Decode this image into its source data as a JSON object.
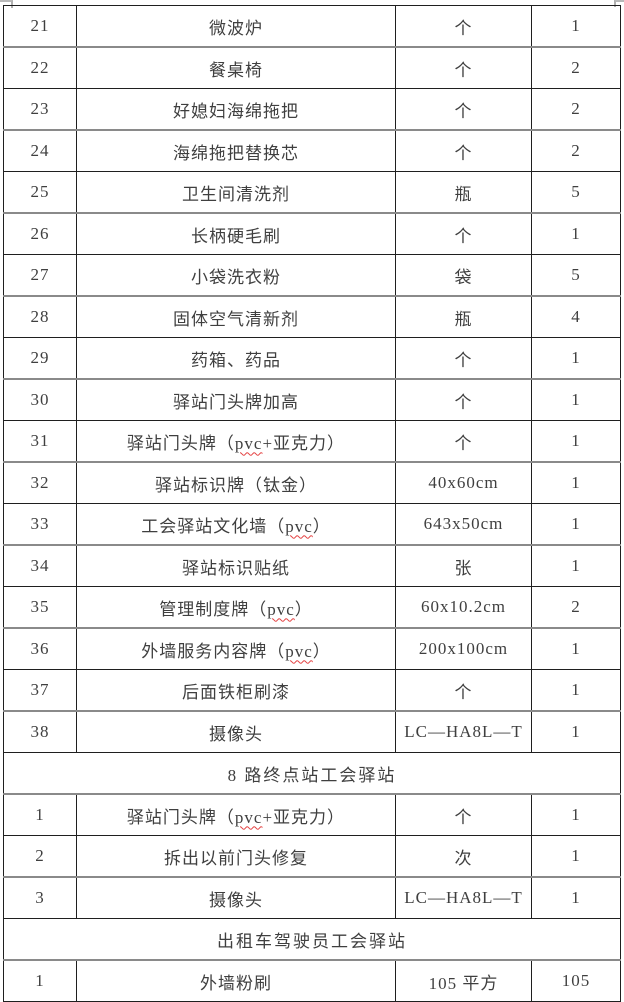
{
  "colors": {
    "text": "#3f3f3f",
    "border_dark": "#1f1f1f",
    "border_gray": "#8a8a8a",
    "spellcheck_squiggle": "#e34040",
    "background": "#ffffff"
  },
  "table": {
    "sections": [
      {
        "header": null,
        "rows": [
          {
            "no": "21",
            "item": "微波炉",
            "spec": "个",
            "qty": "1"
          },
          {
            "no": "22",
            "item": "餐桌椅",
            "spec": "个",
            "qty": "2"
          },
          {
            "no": "23",
            "item": "好媳妇海绵拖把",
            "spec": "个",
            "qty": "2"
          },
          {
            "no": "24",
            "item": "海绵拖把替换芯",
            "spec": "个",
            "qty": "2"
          },
          {
            "no": "25",
            "item": "卫生间清洗剂",
            "spec": "瓶",
            "qty": "5"
          },
          {
            "no": "26",
            "item": "长柄硬毛刷",
            "spec": "个",
            "qty": "1"
          },
          {
            "no": "27",
            "item": "小袋洗衣粉",
            "spec": "袋",
            "qty": "5"
          },
          {
            "no": "28",
            "item": "固体空气清新剂",
            "spec": "瓶",
            "qty": "4"
          },
          {
            "no": "29",
            "item": "药箱、药品",
            "spec": "个",
            "qty": "1"
          },
          {
            "no": "30",
            "item": "驿站门头牌加高",
            "spec": "个",
            "qty": "1"
          },
          {
            "no": "31",
            "item": "驿站门头牌（pvc+亚克力）",
            "mark": "pvc",
            "spec": "个",
            "qty": "1"
          },
          {
            "no": "32",
            "item": "驿站标识牌（钛金）",
            "spec": "40x60cm",
            "qty": "1"
          },
          {
            "no": "33",
            "item": "工会驿站文化墙（pvc）",
            "mark": "pvc",
            "spec": "643x50cm",
            "qty": "1"
          },
          {
            "no": "34",
            "item": "驿站标识贴纸",
            "spec": "张",
            "qty": "1"
          },
          {
            "no": "35",
            "item": "管理制度牌（pvc）",
            "mark": "pvc",
            "spec": "60x10.2cm",
            "qty": "2"
          },
          {
            "no": "36",
            "item": "外墙服务内容牌（pvc）",
            "mark": "pvc",
            "spec": "200x100cm",
            "qty": "1"
          },
          {
            "no": "37",
            "item": "后面铁柜刷漆",
            "spec": "个",
            "qty": "1"
          },
          {
            "no": "38",
            "item": "摄像头",
            "spec": "LC—HA8L—T",
            "qty": "1"
          }
        ]
      },
      {
        "header": "8 路终点站工会驿站",
        "rows": [
          {
            "no": "1",
            "item": "驿站门头牌（pvc+亚克力）",
            "mark": "pvc",
            "spec": "个",
            "qty": "1"
          },
          {
            "no": "2",
            "item": "拆出以前门头修复",
            "spec": "次",
            "qty": "1"
          },
          {
            "no": "3",
            "item": "摄像头",
            "spec": "LC—HA8L—T",
            "qty": "1"
          }
        ]
      },
      {
        "header": "出租车驾驶员工会驿站",
        "rows": [
          {
            "no": "1",
            "item": "外墙粉刷",
            "spec": "105 平方",
            "qty": "105"
          }
        ]
      }
    ]
  }
}
